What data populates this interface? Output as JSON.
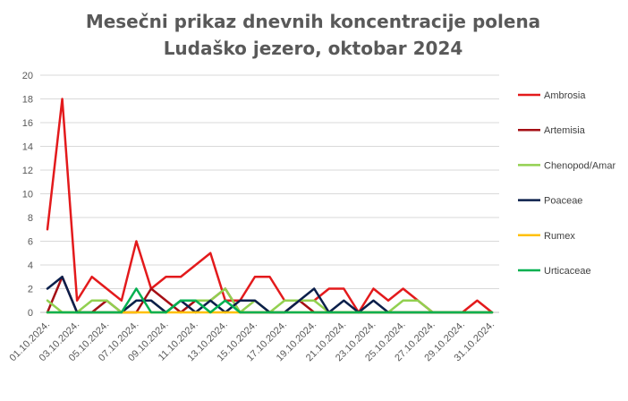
{
  "chart_data": {
    "type": "line",
    "title": "Mesečni prikaz dnevnih koncentracije polena",
    "subtitle": "Ludaško jezero, oktobar 2024",
    "xlabel": "",
    "ylabel": "",
    "ylim": [
      0,
      20
    ],
    "yticks": [
      0,
      2,
      4,
      6,
      8,
      10,
      12,
      14,
      16,
      18,
      20
    ],
    "grid": true,
    "legend_position": "right",
    "x": [
      "01.10.2024.",
      "02.10.2024.",
      "03.10.2024.",
      "04.10.2024.",
      "05.10.2024.",
      "06.10.2024.",
      "07.10.2024.",
      "08.10.2024.",
      "09.10.2024.",
      "10.10.2024.",
      "11.10.2024.",
      "12.10.2024.",
      "13.10.2024.",
      "14.10.2024.",
      "15.10.2024.",
      "16.10.2024.",
      "17.10.2024.",
      "18.10.2024.",
      "19.10.2024.",
      "20.10.2024.",
      "21.10.2024.",
      "22.10.2024.",
      "23.10.2024.",
      "24.10.2024.",
      "25.10.2024.",
      "26.10.2024.",
      "27.10.2024.",
      "28.10.2024.",
      "29.10.2024.",
      "30.10.2024.",
      "31.10.2024."
    ],
    "xtick_labels": [
      "01.10.2024.",
      "03.10.2024.",
      "05.10.2024.",
      "07.10.2024.",
      "09.10.2024.",
      "11.10.2024.",
      "13.10.2024.",
      "15.10.2024.",
      "17.10.2024.",
      "19.10.2024.",
      "21.10.2024.",
      "23.10.2024.",
      "25.10.2024.",
      "27.10.2024.",
      "29.10.2024.",
      "31.10.2024."
    ],
    "series": [
      {
        "name": "Ambrosia",
        "color": "#e31a1c",
        "values": [
          7,
          18,
          1,
          3,
          2,
          1,
          6,
          2,
          3,
          3,
          4,
          5,
          1,
          1,
          3,
          3,
          1,
          1,
          1,
          2,
          2,
          0,
          2,
          1,
          2,
          1,
          0,
          0,
          0,
          1,
          0
        ]
      },
      {
        "name": "Artemisia",
        "color": "#a50f15",
        "values": [
          0,
          3,
          0,
          0,
          1,
          0,
          0,
          2,
          1,
          0,
          1,
          1,
          2,
          0,
          0,
          0,
          0,
          1,
          0,
          0,
          0,
          0,
          0,
          0,
          0,
          0,
          0,
          0,
          0,
          0,
          0
        ]
      },
      {
        "name": "Chenopod/Amar",
        "color": "#92d050",
        "values": [
          1,
          0,
          0,
          1,
          1,
          0,
          1,
          1,
          0,
          1,
          1,
          1,
          2,
          0,
          1,
          0,
          1,
          1,
          1,
          0,
          0,
          0,
          0,
          0,
          1,
          1,
          0,
          0,
          0,
          0,
          0
        ]
      },
      {
        "name": "Poaceae",
        "color": "#0b1f4b",
        "values": [
          2,
          3,
          0,
          0,
          0,
          0,
          1,
          1,
          0,
          1,
          0,
          1,
          0,
          1,
          1,
          0,
          0,
          1,
          2,
          0,
          1,
          0,
          1,
          0,
          0,
          0,
          0,
          0,
          0,
          0,
          0
        ]
      },
      {
        "name": "Rumex",
        "color": "#ffc000",
        "values": [
          0,
          0,
          0,
          0,
          0,
          0,
          0,
          0,
          0,
          0,
          0,
          0,
          0,
          0,
          0,
          0,
          0,
          0,
          0,
          0,
          0,
          0,
          0,
          0,
          0,
          0,
          0,
          0,
          0,
          0,
          0
        ]
      },
      {
        "name": "Urticaceae",
        "color": "#00b050",
        "values": [
          0,
          0,
          0,
          0,
          0,
          0,
          2,
          0,
          0,
          1,
          1,
          0,
          1,
          0,
          0,
          0,
          0,
          0,
          0,
          0,
          0,
          0,
          0,
          0,
          0,
          0,
          0,
          0,
          0,
          0,
          0
        ]
      }
    ]
  }
}
